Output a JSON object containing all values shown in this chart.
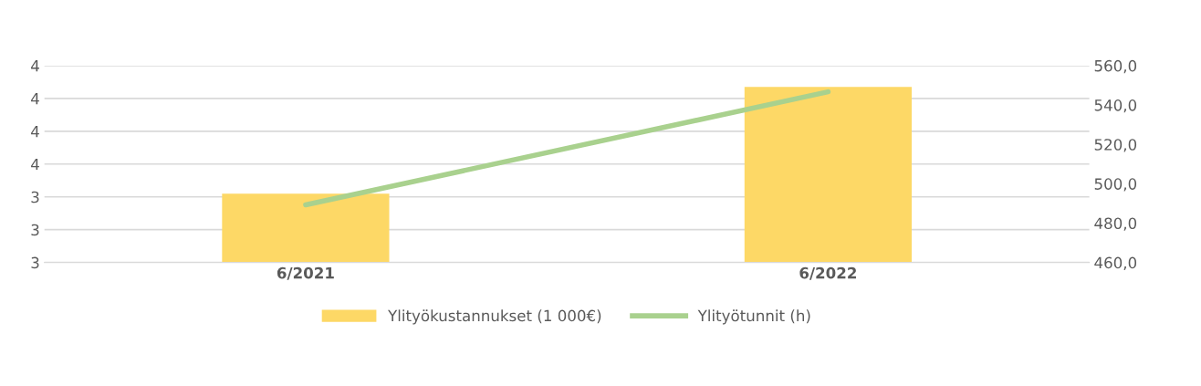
{
  "chart_data": {
    "type": "bar",
    "categories": [
      "6/2021",
      "6/2022"
    ],
    "series": [
      {
        "name": "Ylityökustannukset (1 000€)",
        "color": "#fdd866",
        "values": [
          3.42,
          4.07
        ]
      },
      {
        "name": "Ylityötunnit (h)",
        "type": "line",
        "axis": "y2",
        "color": "#a9d18e",
        "values": [
          489.3,
          546.7
        ]
      }
    ],
    "ylim": [
      3.0,
      4.2
    ],
    "yticks": [
      {
        "value": 3.0,
        "label": "3"
      },
      {
        "value": 3.2,
        "label": "3"
      },
      {
        "value": 3.4,
        "label": "3"
      },
      {
        "value": 3.6,
        "label": "4"
      },
      {
        "value": 3.8,
        "label": "4"
      },
      {
        "value": 4.0,
        "label": "4"
      },
      {
        "value": 4.2,
        "label": "4"
      }
    ],
    "y2lim": [
      460,
      560
    ],
    "y2ticks": [
      {
        "value": 460,
        "label": "460,0"
      },
      {
        "value": 480,
        "label": "480,0"
      },
      {
        "value": 500,
        "label": "500,0"
      },
      {
        "value": 520,
        "label": "520,0"
      },
      {
        "value": 540,
        "label": "540,0"
      },
      {
        "value": 560,
        "label": "560,0"
      }
    ],
    "grid": "y",
    "legend": "bottom"
  }
}
